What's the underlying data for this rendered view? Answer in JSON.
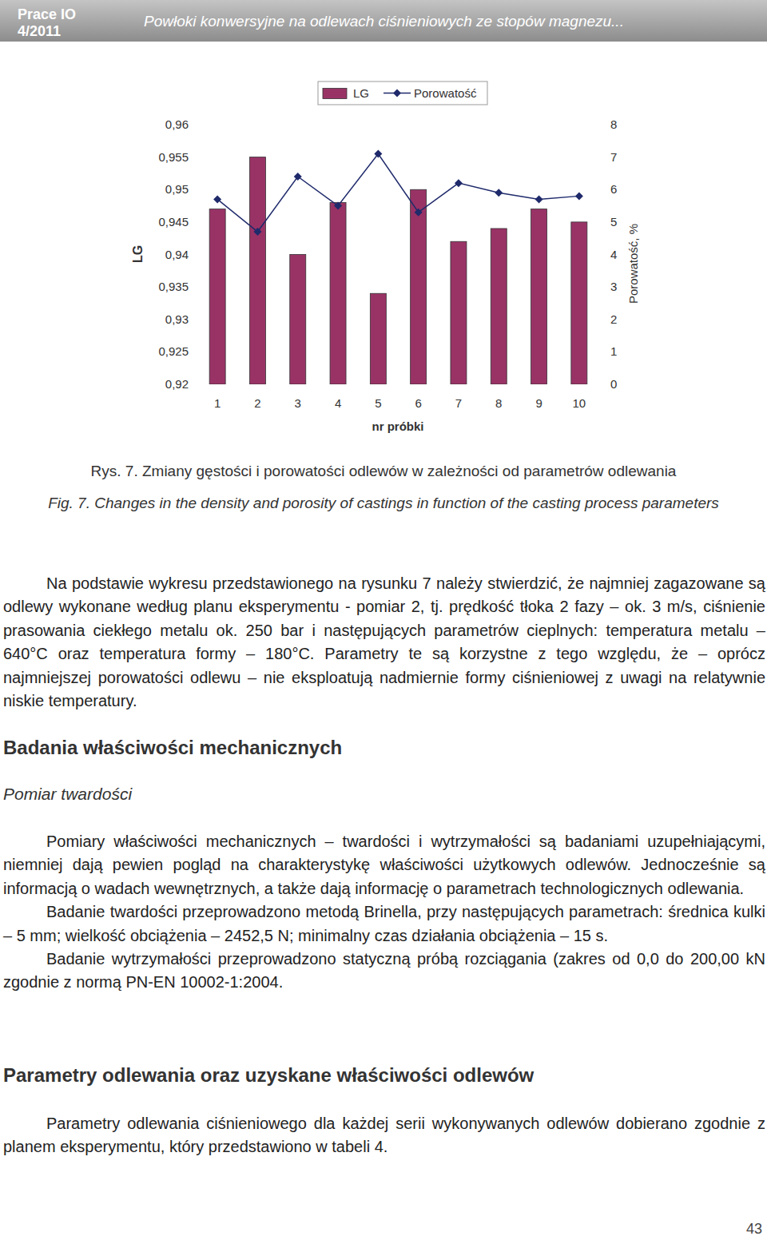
{
  "header": {
    "journal": "Prace IO",
    "issue": "4/2011",
    "title": "Powłoki konwersyjne na odlewach ciśnieniowych ze stopów magnezu..."
  },
  "chart_data": {
    "type": "bar",
    "categories": [
      "1",
      "2",
      "3",
      "4",
      "5",
      "6",
      "7",
      "8",
      "9",
      "10"
    ],
    "xlabel": "nr próbki",
    "ylabel": "LG",
    "y2label": "Porowatość, %",
    "series": [
      {
        "name": "LG",
        "type": "bar",
        "color": "#993366",
        "values": [
          0.947,
          0.955,
          0.94,
          0.948,
          0.934,
          0.95,
          0.942,
          0.944,
          0.947,
          0.945
        ]
      },
      {
        "name": "Porowatość",
        "type": "line",
        "axis": "y2",
        "color": "#1f2a6b",
        "marker": "diamond",
        "values": [
          5.7,
          4.7,
          6.4,
          5.5,
          7.1,
          5.3,
          6.2,
          5.9,
          5.7,
          5.8
        ]
      }
    ],
    "ylim": [
      0.92,
      0.96
    ],
    "yticks": [
      {
        "value": 0.92,
        "label": "0,92"
      },
      {
        "value": 0.925,
        "label": "0,925"
      },
      {
        "value": 0.93,
        "label": "0,93"
      },
      {
        "value": 0.935,
        "label": "0,935"
      },
      {
        "value": 0.94,
        "label": "0,94"
      },
      {
        "value": 0.945,
        "label": "0,945"
      },
      {
        "value": 0.95,
        "label": "0,95"
      },
      {
        "value": 0.955,
        "label": "0,955"
      },
      {
        "value": 0.96,
        "label": "0,96"
      }
    ],
    "y2lim": [
      0,
      8
    ],
    "y2ticks": [
      0,
      1,
      2,
      3,
      4,
      5,
      6,
      7,
      8
    ],
    "legend": "top",
    "grid": false
  },
  "caption": {
    "pl": "Rys. 7. Zmiany gęstości i porowatości odlewów w zależności od parametrów odlewania",
    "en": "Fig. 7. Changes in the density and porosity of castings in function of the casting process parameters"
  },
  "paragraphs": [
    "Na podstawie wykresu przedstawionego na rysunku 7 należy stwierdzić, że najmniej zagazowane są odlewy wykonane według planu eksperymentu - pomiar 2, tj. prędkość tłoka 2 fazy – ok. 3 m/s, ciśnienie prasowania ciekłego metalu ok. 250 bar i następujących parametrów cieplnych: temperatura metalu – 640°C oraz temperatura formy – 180°C. Parametry te są korzystne z tego względu, że – oprócz najmniejszej porowatości odlewu – nie eksploatują nadmiernie formy ciśnieniowej z uwagi na relatywnie niskie temperatury.",
    "Pomiary właściwości mechanicznych – twardości i wytrzymałości są badaniami uzupełniającymi, niemniej dają pewien pogląd na charakterystykę właściwości użytkowych odlewów. Jednocześnie są informacją o wadach wewnętrznych, a także dają informację o parametrach technologicznych odlewania.",
    "Badanie twardości przeprowadzono metodą Brinella, przy następujących parametrach: średnica kulki – 5 mm; wielkość obciążenia – 2452,5 N; minimalny czas działania obciążenia – 15 s.",
    "Badanie wytrzymałości przeprowadzono statyczną próbą rozciągania (zakres od 0,0 do 200,00 kN zgodnie z normą PN-EN 10002-1:2004.",
    "Parametry odlewania ciśnieniowego dla każdej serii wykonywanych odlewów dobierano zgodnie z planem eksperymentu, który przedstawiono w tabeli 4."
  ],
  "headings": {
    "section": "Badania właściwości mechanicznych",
    "subsection": "Pomiar twardości",
    "section2": "Parametry odlewania oraz uzyskane właściwości odlewów"
  },
  "page_number": "43"
}
